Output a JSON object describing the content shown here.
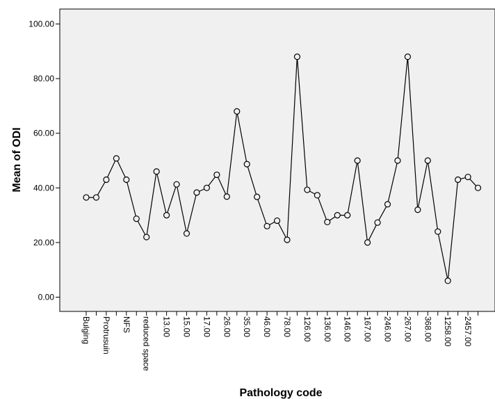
{
  "chart_data": {
    "type": "line",
    "xlabel": "Pathology code",
    "ylabel": "Mean of ODI",
    "ylim": [
      0,
      104
    ],
    "y_ticks": [
      "0.00",
      "20.00",
      "40.00",
      "60.00",
      "80.00",
      "100.00"
    ],
    "x_tick_labels": [
      "Bulging",
      "Protrusuin",
      "NFS",
      "reduced space",
      "13.00",
      "15.00",
      "17.00",
      "26.00",
      "35.00",
      "46.00",
      "78.00",
      "126.00",
      "136.00",
      "146.00",
      "167.00",
      "246.00",
      "267.00",
      "368.00",
      "1258.00",
      "2457.00"
    ],
    "points": [
      {
        "x": "Bulging",
        "y": 36.5
      },
      {
        "x": "",
        "y": 36.5
      },
      {
        "x": "Protrusuin",
        "y": 43.0
      },
      {
        "x": "",
        "y": 50.8
      },
      {
        "x": "NFS",
        "y": 43.0
      },
      {
        "x": "",
        "y": 28.7
      },
      {
        "x": "reduced space",
        "y": 22.0
      },
      {
        "x": "",
        "y": 46.0
      },
      {
        "x": "13.00",
        "y": 30.0
      },
      {
        "x": "",
        "y": 41.3
      },
      {
        "x": "15.00",
        "y": 23.3
      },
      {
        "x": "",
        "y": 38.3
      },
      {
        "x": "17.00",
        "y": 40.0
      },
      {
        "x": "",
        "y": 44.8
      },
      {
        "x": "26.00",
        "y": 36.8
      },
      {
        "x": "",
        "y": 68.0
      },
      {
        "x": "35.00",
        "y": 48.7
      },
      {
        "x": "",
        "y": 36.7
      },
      {
        "x": "46.00",
        "y": 26.0
      },
      {
        "x": "",
        "y": 28.0
      },
      {
        "x": "78.00",
        "y": 21.0
      },
      {
        "x": "",
        "y": 88.0
      },
      {
        "x": "126.00",
        "y": 39.3
      },
      {
        "x": "",
        "y": 37.3
      },
      {
        "x": "136.00",
        "y": 27.5
      },
      {
        "x": "",
        "y": 30.0
      },
      {
        "x": "146.00",
        "y": 30.0
      },
      {
        "x": "",
        "y": 50.0
      },
      {
        "x": "167.00",
        "y": 20.0
      },
      {
        "x": "",
        "y": 27.3
      },
      {
        "x": "246.00",
        "y": 34.0
      },
      {
        "x": "",
        "y": 50.0
      },
      {
        "x": "267.00",
        "y": 88.0
      },
      {
        "x": "",
        "y": 32.0
      },
      {
        "x": "368.00",
        "y": 50.0
      },
      {
        "x": "",
        "y": 24.0
      },
      {
        "x": "1258.00",
        "y": 6.0
      },
      {
        "x": "",
        "y": 43.0
      },
      {
        "x": "2457.00",
        "y": 44.0
      },
      {
        "x": "",
        "y": 40.0
      }
    ],
    "grid": false,
    "colors": {
      "plot_background": "#f0f0f0",
      "line": "#000000",
      "marker_fill": "#f0f0f0"
    }
  }
}
